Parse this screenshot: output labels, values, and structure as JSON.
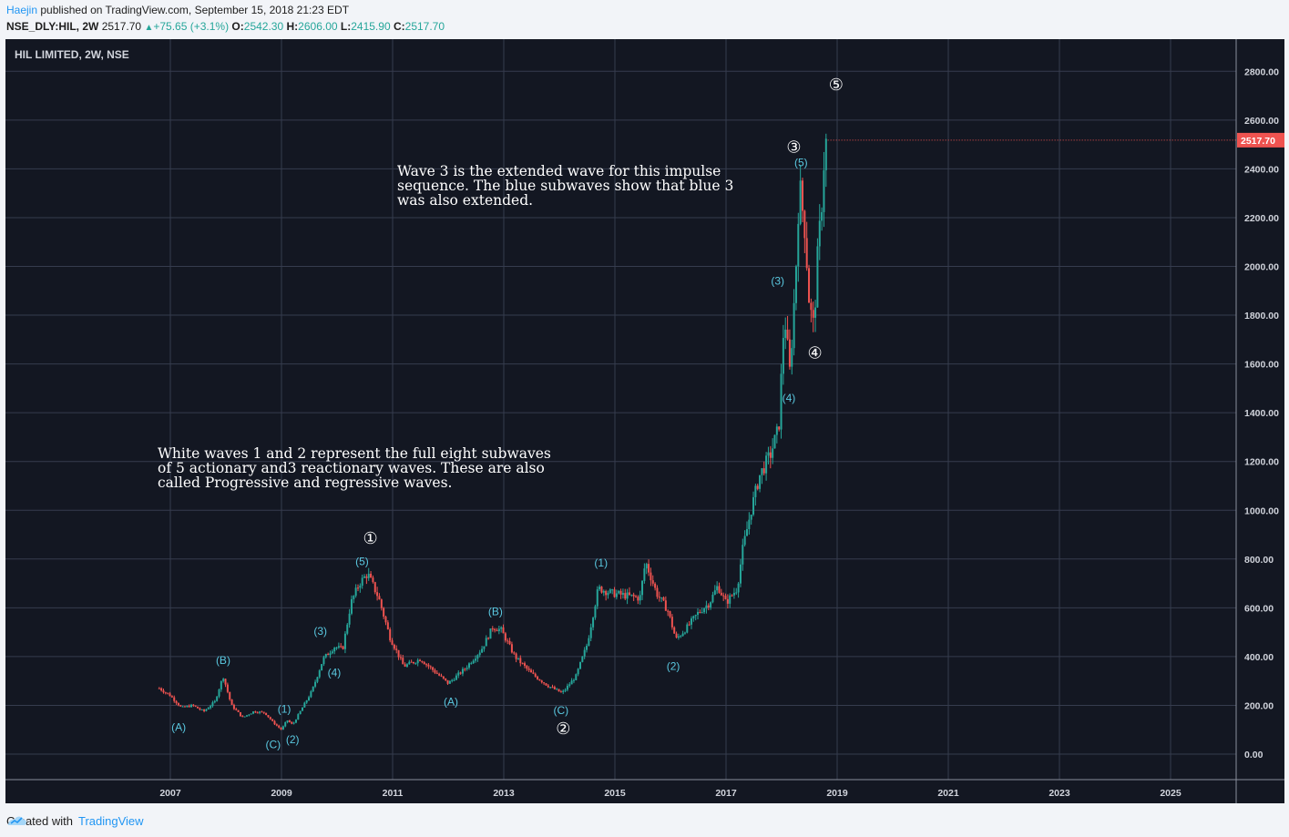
{
  "header": {
    "author": "Haejin",
    "published_text": " published on TradingView.com, September 15, 2018 21:23 EDT",
    "symbol": "NSE_DLY:HIL, 2W",
    "last": "2517.70",
    "change": "+75.65 (+3.1%)",
    "open_label": "O:",
    "open": "2542.30",
    "high_label": "H:",
    "high": "2606.00",
    "low_label": "L:",
    "low": "2415.90",
    "close_label": "C:",
    "close": "2517.70"
  },
  "footer": {
    "created_with": "Created with",
    "brand": "TradingView"
  },
  "chart_data": {
    "type": "candlestick",
    "title": "HIL LIMITED, 2W, NSE",
    "y_ticks": [
      0,
      200,
      400,
      600,
      800,
      1000,
      1200,
      1400,
      1600,
      1800,
      2000,
      2200,
      2400,
      2600,
      2800
    ],
    "ylim": [
      -110,
      2900
    ],
    "x_ticks": [
      "2007",
      "2009",
      "2011",
      "2013",
      "2015",
      "2017",
      "2019",
      "2021",
      "2023",
      "2025"
    ],
    "xlim": [
      2006.6,
      2026.3
    ],
    "last_price": "2517.70",
    "colors": {
      "up": "#26a69a",
      "down": "#ef5350",
      "grid": "#363c4e",
      "background": "#131722",
      "wave_label": "#5ac8e0",
      "price_tag": "#ef5350"
    },
    "price_path": [
      [
        2006.8,
        270
      ],
      [
        2007.0,
        240
      ],
      [
        2007.2,
        190
      ],
      [
        2007.4,
        200
      ],
      [
        2007.6,
        175
      ],
      [
        2007.8,
        215
      ],
      [
        2007.95,
        320
      ],
      [
        2008.1,
        200
      ],
      [
        2008.3,
        150
      ],
      [
        2008.5,
        175
      ],
      [
        2008.7,
        170
      ],
      [
        2008.85,
        130
      ],
      [
        2009.0,
        100
      ],
      [
        2009.1,
        140
      ],
      [
        2009.2,
        120
      ],
      [
        2009.4,
        200
      ],
      [
        2009.55,
        260
      ],
      [
        2009.75,
        390
      ],
      [
        2009.95,
        440
      ],
      [
        2010.1,
        430
      ],
      [
        2010.25,
        620
      ],
      [
        2010.4,
        700
      ],
      [
        2010.55,
        740
      ],
      [
        2010.75,
        640
      ],
      [
        2010.95,
        480
      ],
      [
        2011.2,
        360
      ],
      [
        2011.5,
        390
      ],
      [
        2011.8,
        330
      ],
      [
        2012.0,
        290
      ],
      [
        2012.3,
        350
      ],
      [
        2012.6,
        430
      ],
      [
        2012.8,
        520
      ],
      [
        2012.95,
        510
      ],
      [
        2013.2,
        400
      ],
      [
        2013.5,
        330
      ],
      [
        2013.8,
        280
      ],
      [
        2014.05,
        250
      ],
      [
        2014.3,
        320
      ],
      [
        2014.5,
        450
      ],
      [
        2014.7,
        680
      ],
      [
        2014.95,
        660
      ],
      [
        2015.2,
        650
      ],
      [
        2015.45,
        640
      ],
      [
        2015.55,
        790
      ],
      [
        2015.75,
        660
      ],
      [
        2015.95,
        590
      ],
      [
        2016.1,
        470
      ],
      [
        2016.3,
        520
      ],
      [
        2016.5,
        580
      ],
      [
        2016.7,
        620
      ],
      [
        2016.85,
        690
      ],
      [
        2017.0,
        620
      ],
      [
        2017.2,
        680
      ],
      [
        2017.3,
        840
      ],
      [
        2017.45,
        1000
      ],
      [
        2017.6,
        1140
      ],
      [
        2017.8,
        1230
      ],
      [
        2017.95,
        1340
      ],
      [
        2018.05,
        1810
      ],
      [
        2018.15,
        1560
      ],
      [
        2018.25,
        1950
      ],
      [
        2018.32,
        2340
      ],
      [
        2018.42,
        2150
      ],
      [
        2018.5,
        1840
      ],
      [
        2018.58,
        1750
      ],
      [
        2018.65,
        2050
      ],
      [
        2018.72,
        2250
      ],
      [
        2018.78,
        2500
      ],
      [
        2018.83,
        2518
      ]
    ],
    "white_waves": [
      {
        "label": "①",
        "x": 2010.6,
        "y": 885
      },
      {
        "label": "②",
        "x": 2014.07,
        "y": 105
      },
      {
        "label": "③",
        "x": 2018.22,
        "y": 2490
      },
      {
        "label": "④",
        "x": 2018.6,
        "y": 1645
      },
      {
        "label": "⑤",
        "x": 2018.98,
        "y": 2745
      }
    ],
    "blue_waves": [
      {
        "label": "(A)",
        "x": 2007.15,
        "y": 110
      },
      {
        "label": "(B)",
        "x": 2007.95,
        "y": 385
      },
      {
        "label": "(1)",
        "x": 2009.05,
        "y": 185
      },
      {
        "label": "(2)",
        "x": 2009.2,
        "y": 60
      },
      {
        "label": "(C)",
        "x": 2008.85,
        "y": 40
      },
      {
        "label": "(3)",
        "x": 2009.7,
        "y": 505
      },
      {
        "label": "(4)",
        "x": 2009.95,
        "y": 335
      },
      {
        "label": "(5)",
        "x": 2010.45,
        "y": 790
      },
      {
        "label": "(A)",
        "x": 2012.05,
        "y": 215
      },
      {
        "label": "(B)",
        "x": 2012.85,
        "y": 585
      },
      {
        "label": "(C)",
        "x": 2014.03,
        "y": 180
      },
      {
        "label": "(1)",
        "x": 2014.75,
        "y": 785
      },
      {
        "label": "(2)",
        "x": 2016.05,
        "y": 360
      },
      {
        "label": "(3)",
        "x": 2017.93,
        "y": 1940
      },
      {
        "label": "(4)",
        "x": 2018.13,
        "y": 1460
      },
      {
        "label": "(5)",
        "x": 2018.35,
        "y": 2425
      }
    ],
    "annotations": [
      {
        "id": "wave3",
        "text": "Wave 3 is the extended wave for this impulse\nsequence. The blue subwaves show that blue 3\nwas also extended."
      },
      {
        "id": "white12",
        "text": "White waves 1 and 2 represent the full eight subwaves\nof 5 actionary and3 reactionary waves. These are also\ncalled Progressive and regressive waves."
      }
    ]
  }
}
